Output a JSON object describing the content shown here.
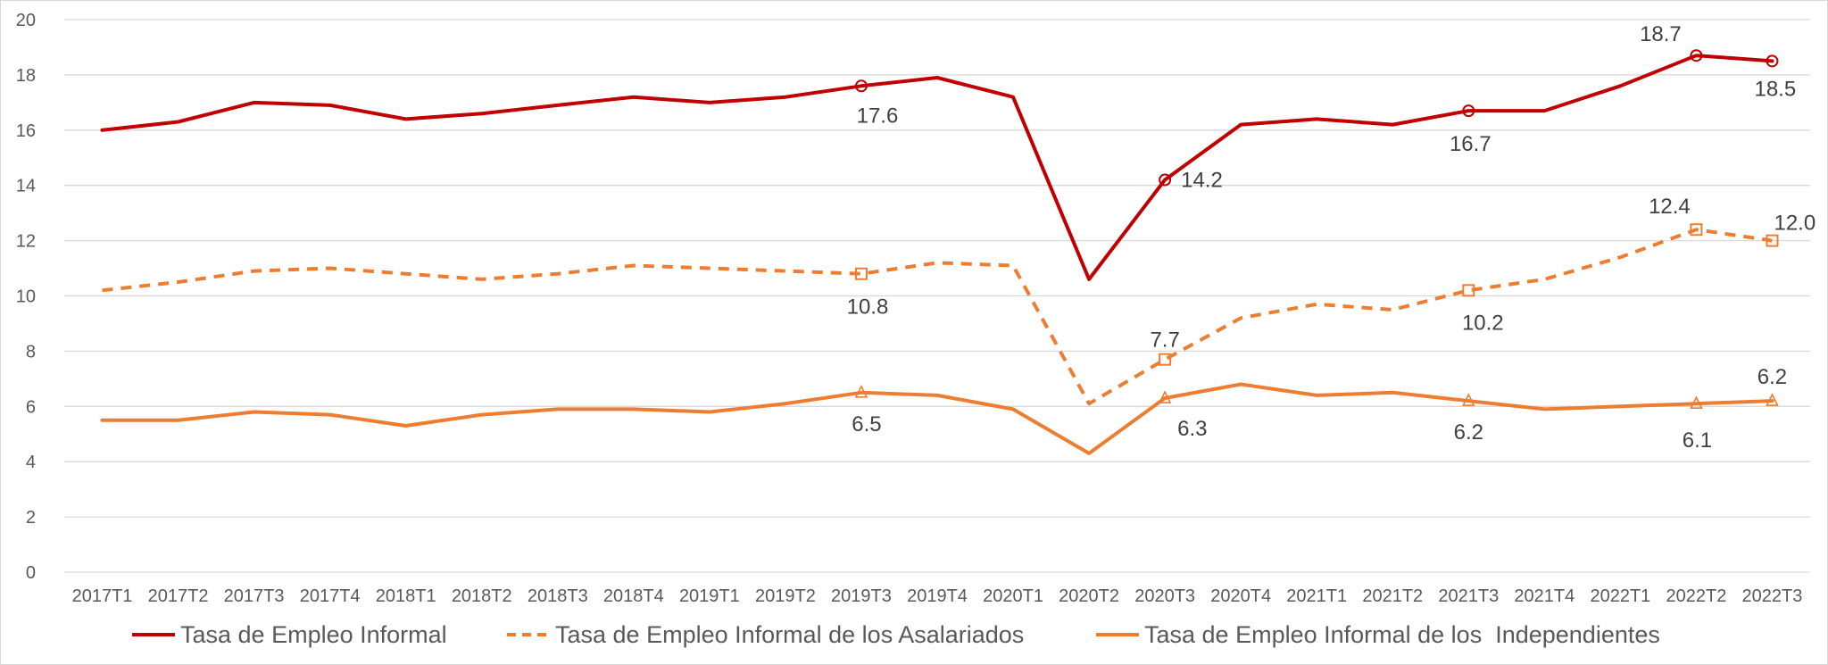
{
  "chart_data": {
    "type": "line",
    "title": "",
    "xlabel": "",
    "ylabel": "",
    "ylim": [
      0,
      20
    ],
    "yticks": [
      0,
      2,
      4,
      6,
      8,
      10,
      12,
      14,
      16,
      18,
      20
    ],
    "grid": "horizontal",
    "legend_position": "bottom",
    "categories": [
      "2017T1",
      "2017T2",
      "2017T3",
      "2017T4",
      "2018T1",
      "2018T2",
      "2018T3",
      "2018T4",
      "2019T1",
      "2019T2",
      "2019T3",
      "2019T4",
      "2020T1",
      "2020T2",
      "2020T3",
      "2020T4",
      "2021T1",
      "2021T2",
      "2021T3",
      "2021T4",
      "2022T1",
      "2022T2",
      "2022T3"
    ],
    "series": [
      {
        "name": "Tasa de Empleo Informal",
        "color": "#c00000",
        "dash": "solid",
        "marker": "circle",
        "values": [
          16.0,
          16.3,
          17.0,
          16.9,
          16.4,
          16.6,
          16.9,
          17.2,
          17.0,
          17.2,
          17.6,
          17.9,
          17.2,
          10.6,
          14.2,
          16.2,
          16.4,
          16.2,
          16.7,
          16.7,
          17.6,
          18.7,
          18.5
        ],
        "labels": [
          {
            "index": 10,
            "text": "17.6"
          },
          {
            "index": 14,
            "text": "14.2"
          },
          {
            "index": 18,
            "text": "16.7"
          },
          {
            "index": 21,
            "text": "18.7"
          },
          {
            "index": 22,
            "text": "18.5"
          }
        ]
      },
      {
        "name": "Tasa de Empleo Informal de los Asalariados",
        "color": "#ed7d31",
        "dash": "dashed",
        "marker": "square",
        "values": [
          10.2,
          10.5,
          10.9,
          11.0,
          10.8,
          10.6,
          10.8,
          11.1,
          11.0,
          10.9,
          10.8,
          11.2,
          11.1,
          6.1,
          7.7,
          9.2,
          9.7,
          9.5,
          10.2,
          10.6,
          11.4,
          12.4,
          12.0
        ],
        "labels": [
          {
            "index": 10,
            "text": "10.8"
          },
          {
            "index": 14,
            "text": "7.7"
          },
          {
            "index": 18,
            "text": "10.2"
          },
          {
            "index": 21,
            "text": "12.4"
          },
          {
            "index": 22,
            "text": "12.0"
          }
        ]
      },
      {
        "name": "Tasa de Empleo Informal de los  Independientes",
        "color": "#ed7d31",
        "dash": "solid",
        "marker": "triangle",
        "values": [
          5.5,
          5.5,
          5.8,
          5.7,
          5.3,
          5.7,
          5.9,
          5.9,
          5.8,
          6.1,
          6.5,
          6.4,
          5.9,
          4.3,
          6.3,
          6.8,
          6.4,
          6.5,
          6.2,
          5.9,
          6.0,
          6.1,
          6.2
        ],
        "labels": [
          {
            "index": 10,
            "text": "6.5"
          },
          {
            "index": 14,
            "text": "6.3"
          },
          {
            "index": 18,
            "text": "6.2"
          },
          {
            "index": 21,
            "text": "6.1"
          },
          {
            "index": 22,
            "text": "6.2"
          }
        ]
      }
    ]
  }
}
